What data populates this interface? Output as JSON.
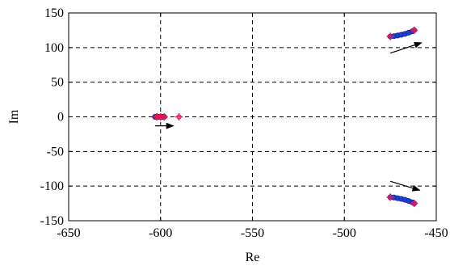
{
  "chart_data": {
    "type": "scatter",
    "title": "",
    "xlabel": "Re",
    "ylabel": "Im",
    "xlim": [
      -650,
      -450
    ],
    "ylim": [
      -150,
      150
    ],
    "xticks": [
      -650,
      -600,
      -550,
      -500,
      -450
    ],
    "yticks": [
      -150,
      -100,
      -50,
      0,
      50,
      100,
      150
    ],
    "xtick_labels": [
      "-650",
      "-600",
      "-550",
      "-500",
      "-450"
    ],
    "ytick_labels": [
      "-150",
      "-100",
      "-50",
      "0",
      "50",
      "100",
      "150"
    ],
    "grid": true,
    "colors": {
      "path": "#1f3fcc",
      "endpoints": "#e8185a",
      "arrow": "#000000",
      "grid": "#000000"
    },
    "series": [
      {
        "x": [
          -603,
          -602,
          -601,
          -600,
          -599,
          -598
        ],
        "y": [
          0,
          0,
          0,
          0,
          0,
          0
        ]
      },
      {
        "x": [
          -475,
          -473,
          -471,
          -469,
          -467,
          -465,
          -463,
          -462
        ],
        "y": [
          116,
          116.5,
          117.5,
          118.5,
          119.8,
          121.5,
          123.5,
          125
        ]
      },
      {
        "x": [
          -475,
          -473,
          -471,
          -469,
          -467,
          -465,
          -463,
          -462
        ],
        "y": [
          -116,
          -116.5,
          -117.5,
          -118.5,
          -119.8,
          -121.5,
          -123.5,
          -125
        ]
      }
    ],
    "endpoint_markers": [
      {
        "x": -602,
        "y": 0
      },
      {
        "x": -600,
        "y": 0
      },
      {
        "x": -598,
        "y": 0
      },
      {
        "x": -590,
        "y": 0
      },
      {
        "x": -475,
        "y": 116
      },
      {
        "x": -462,
        "y": 125
      },
      {
        "x": -475,
        "y": -116
      },
      {
        "x": -462,
        "y": -125
      }
    ],
    "arrows": [
      {
        "x1": -603,
        "y1": -13,
        "x2": -593,
        "y2": -13
      },
      {
        "x1": -475,
        "y1": 92,
        "x2": -458,
        "y2": 107
      },
      {
        "x1": -475,
        "y1": -93,
        "x2": -459,
        "y2": -106
      }
    ]
  }
}
